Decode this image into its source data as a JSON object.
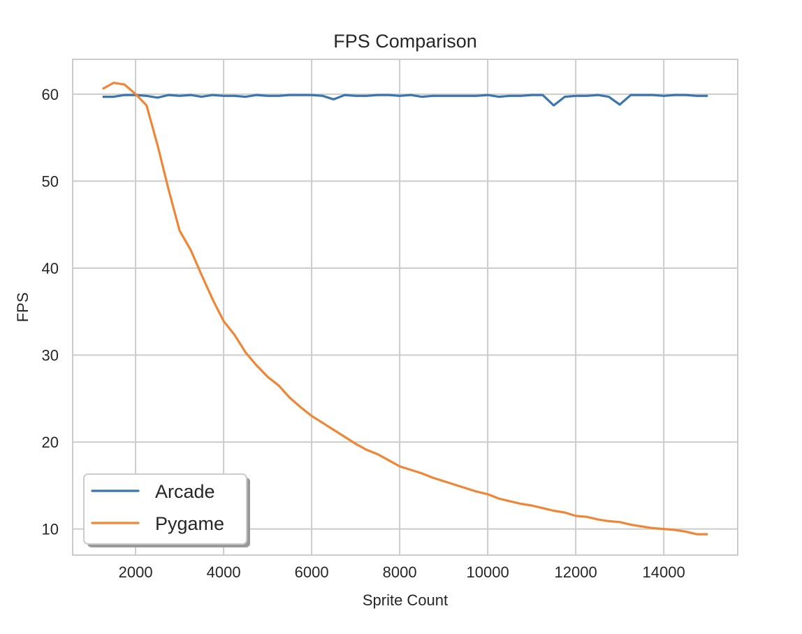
{
  "chart_data": {
    "type": "line",
    "title": "FPS Comparison",
    "xlabel": "Sprite Count",
    "ylabel": "FPS",
    "xlim": [
      570,
      15680
    ],
    "ylim": [
      7.0,
      64.0
    ],
    "xticks": [
      2000,
      4000,
      6000,
      8000,
      10000,
      12000,
      14000
    ],
    "yticks": [
      10,
      20,
      30,
      40,
      50,
      60
    ],
    "grid": true,
    "legend_position": "lower left",
    "x": [
      1250,
      1500,
      1750,
      2000,
      2250,
      2500,
      2750,
      3000,
      3250,
      3500,
      3750,
      4000,
      4250,
      4500,
      4750,
      5000,
      5250,
      5500,
      5750,
      6000,
      6250,
      6500,
      6750,
      7000,
      7250,
      7500,
      7750,
      8000,
      8250,
      8500,
      8750,
      9000,
      9250,
      9500,
      9750,
      10000,
      10250,
      10500,
      10750,
      11000,
      11250,
      11500,
      11750,
      12000,
      12250,
      12500,
      12750,
      13000,
      13250,
      13500,
      13750,
      14000,
      14250,
      14500,
      14750,
      15000
    ],
    "series": [
      {
        "name": "Arcade",
        "color": "#3b75af",
        "values": [
          59.7,
          59.7,
          59.9,
          59.9,
          59.8,
          59.6,
          59.9,
          59.8,
          59.9,
          59.7,
          59.9,
          59.8,
          59.8,
          59.7,
          59.9,
          59.8,
          59.8,
          59.9,
          59.9,
          59.9,
          59.8,
          59.4,
          59.9,
          59.8,
          59.8,
          59.9,
          59.9,
          59.8,
          59.9,
          59.7,
          59.8,
          59.8,
          59.8,
          59.8,
          59.8,
          59.9,
          59.7,
          59.8,
          59.8,
          59.9,
          59.9,
          58.7,
          59.7,
          59.8,
          59.8,
          59.9,
          59.7,
          58.8,
          59.9,
          59.9,
          59.9,
          59.8,
          59.9,
          59.9,
          59.8,
          59.8
        ]
      },
      {
        "name": "Pygame",
        "color": "#ef8636",
        "values": [
          60.6,
          61.3,
          61.1,
          60.0,
          58.7,
          54.1,
          49.0,
          44.3,
          42.1,
          39.2,
          36.4,
          33.9,
          32.3,
          30.3,
          28.8,
          27.5,
          26.5,
          25.1,
          24.0,
          23.0,
          22.2,
          21.4,
          20.6,
          19.8,
          19.1,
          18.6,
          17.9,
          17.2,
          16.8,
          16.4,
          15.9,
          15.5,
          15.1,
          14.7,
          14.3,
          14.0,
          13.5,
          13.2,
          12.9,
          12.7,
          12.4,
          12.1,
          11.9,
          11.5,
          11.4,
          11.1,
          10.9,
          10.8,
          10.5,
          10.3,
          10.1,
          10.0,
          9.9,
          9.7,
          9.4,
          9.4
        ]
      }
    ]
  },
  "legend": {
    "items": [
      {
        "label": "Arcade"
      },
      {
        "label": "Pygame"
      }
    ]
  },
  "style": {
    "background": "#ffffff",
    "grid_color": "#cccccc",
    "frame_color": "#cccccc",
    "text_color": "#262626",
    "legend_shadow": "#999999"
  }
}
